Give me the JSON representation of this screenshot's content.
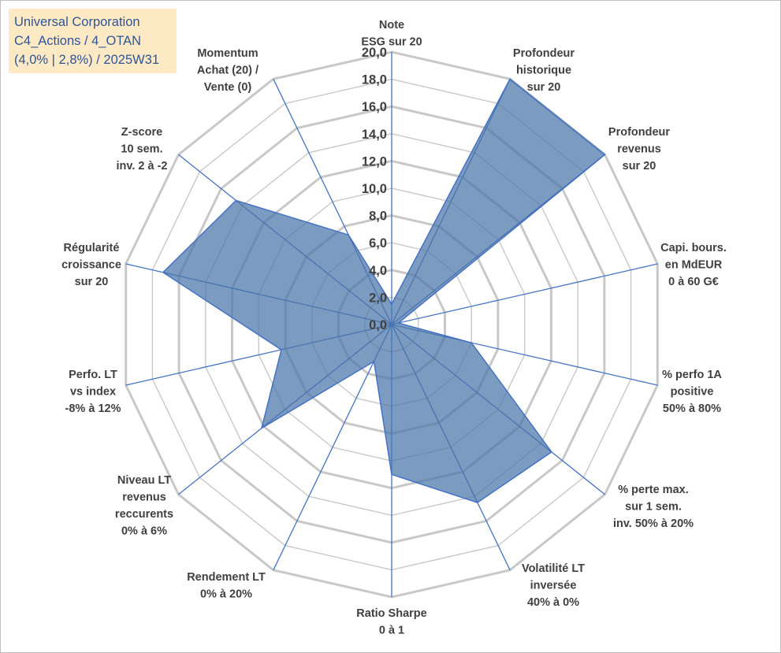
{
  "chart_data": {
    "type": "radar",
    "title": [
      "Universal Corporation",
      "C4_Actions / 4_OTAN",
      "(4,0% | 2,8%) / 2025W31"
    ],
    "rmin": 0,
    "rmax": 20,
    "ticks": [
      "0,0",
      "2,0",
      "4,0",
      "6,0",
      "8,0",
      "10,0",
      "12,0",
      "14,0",
      "16,0",
      "18,0",
      "20,0"
    ],
    "axes": [
      {
        "label": [
          "Note",
          "ESG sur 20"
        ],
        "value": 1.5
      },
      {
        "label": [
          "Profondeur",
          "historique",
          "sur 20"
        ],
        "value": 20
      },
      {
        "label": [
          "Profondeur",
          "revenus",
          "sur 20"
        ],
        "value": 20
      },
      {
        "label": [
          "Capi. bours.",
          "en MdEUR",
          "0 à 60 G€"
        ],
        "value": 0.5
      },
      {
        "label": [
          "% perfo 1A",
          "positive",
          "50% à 80%"
        ],
        "value": 6
      },
      {
        "label": [
          "% perte max.",
          "sur 1 sem.",
          "inv. 50% à 20%"
        ],
        "value": 15
      },
      {
        "label": [
          "Volatilité LT",
          "inversée",
          "40% à 0%"
        ],
        "value": 14.5
      },
      {
        "label": [
          "Ratio Sharpe",
          "0 à 1"
        ],
        "value": 11
      },
      {
        "label": [
          "Rendement LT",
          "0% à 20%"
        ],
        "value": 3
      },
      {
        "label": [
          "Niveau LT",
          "revenus",
          "reccurents",
          "0% à 6%"
        ],
        "value": 12.2
      },
      {
        "label": [
          "Perfo. LT",
          "vs index",
          "-8% à 12%"
        ],
        "value": 8.3
      },
      {
        "label": [
          "Régularité",
          "croissance",
          "sur 20"
        ],
        "value": 17.2
      },
      {
        "label": [
          "Z-score",
          "10 sem.",
          "inv. 2 à -2"
        ],
        "value": 14.6
      },
      {
        "label": [
          "Momentum",
          "Achat (20) /",
          "Vente (0)"
        ],
        "value": 7.3
      }
    ],
    "colors": {
      "fill": "#4a74a8",
      "stroke": "#4472c4",
      "grid": "#c8c8c8",
      "text": "#404040",
      "title": "#2f5597",
      "title_bg": "#fde9c4"
    }
  }
}
